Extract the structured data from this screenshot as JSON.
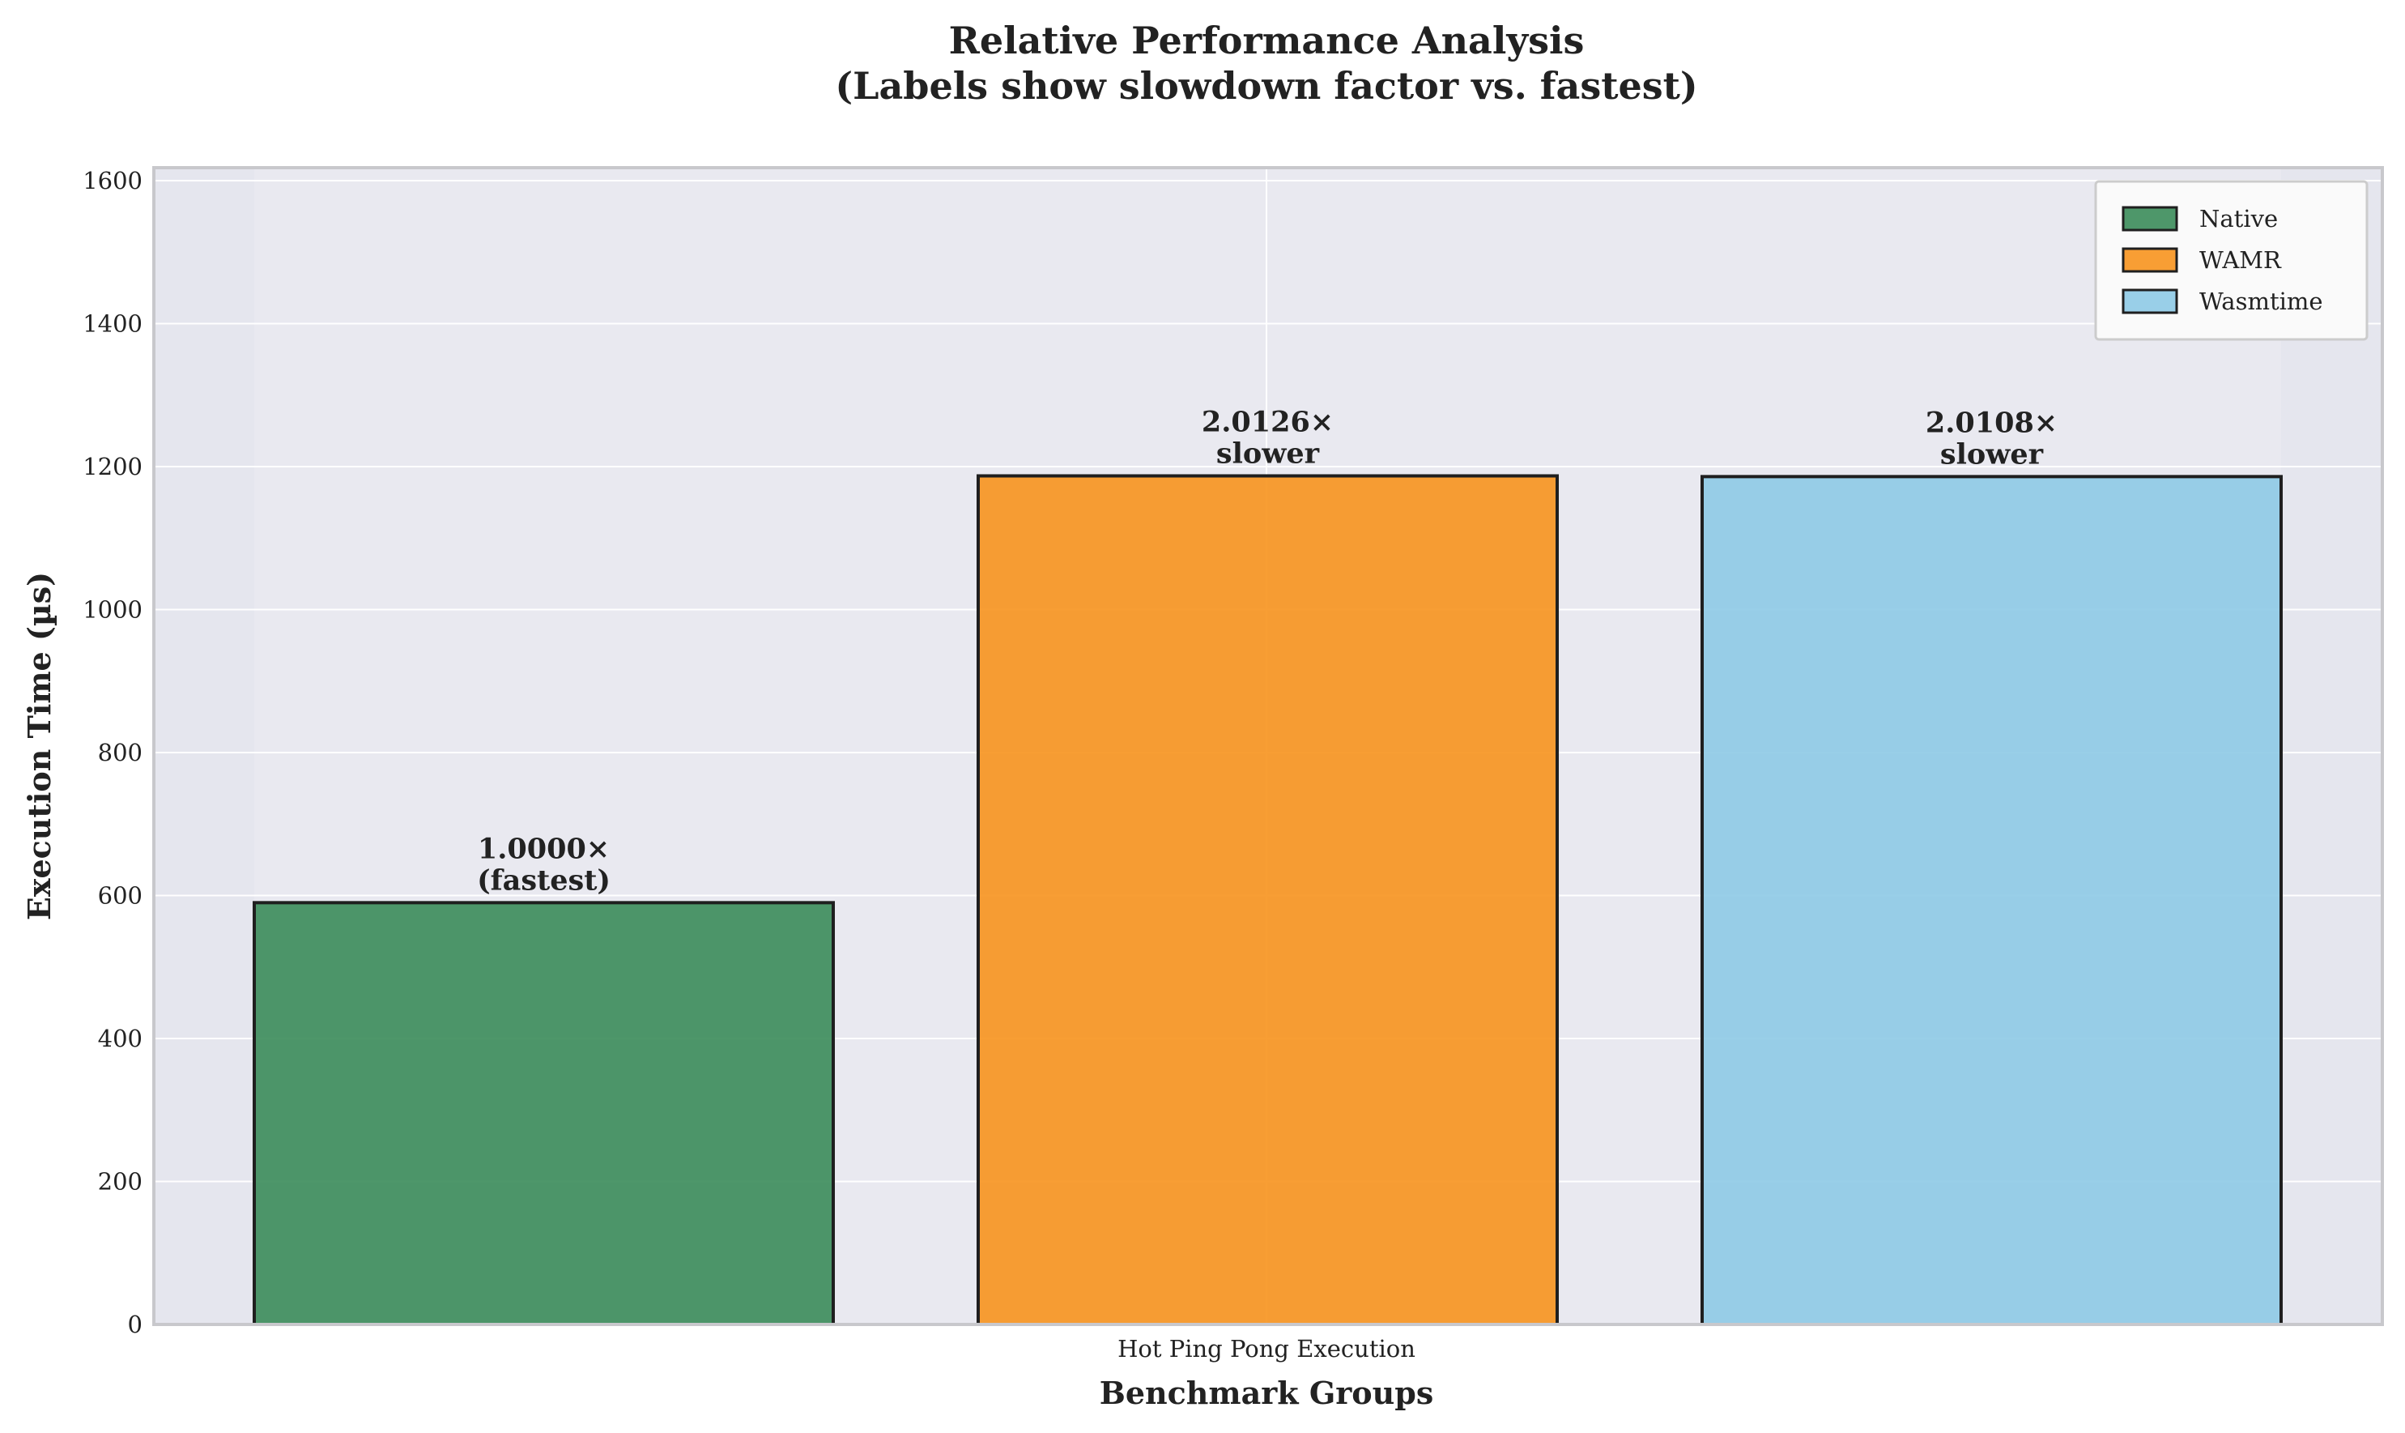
{
  "chart_data": {
    "type": "bar",
    "title": "Relative Performance Analysis",
    "subtitle": "(Labels show slowdown factor vs. fastest)",
    "xlabel": "Benchmark Groups",
    "ylabel": "Execution Time (µs)",
    "categories": [
      "Hot Ping Pong Execution"
    ],
    "ylim": [
      0,
      1620
    ],
    "yticks": [
      0,
      200,
      400,
      600,
      800,
      1000,
      1200,
      1400,
      1600
    ],
    "grid": true,
    "legend_position": "top-right",
    "series": [
      {
        "name": "Native",
        "values": [
          590
        ],
        "color": "#3b8c5a",
        "label_line1": "1.0000×",
        "label_line2": "(fastest)"
      },
      {
        "name": "WAMR",
        "values": [
          1187
        ],
        "color": "#f7931e",
        "label_line1": "2.0126×",
        "label_line2": "slower"
      },
      {
        "name": "Wasmtime",
        "values": [
          1186
        ],
        "color": "#8ecae6",
        "label_line1": "2.0108×",
        "label_line2": "slower"
      }
    ]
  }
}
